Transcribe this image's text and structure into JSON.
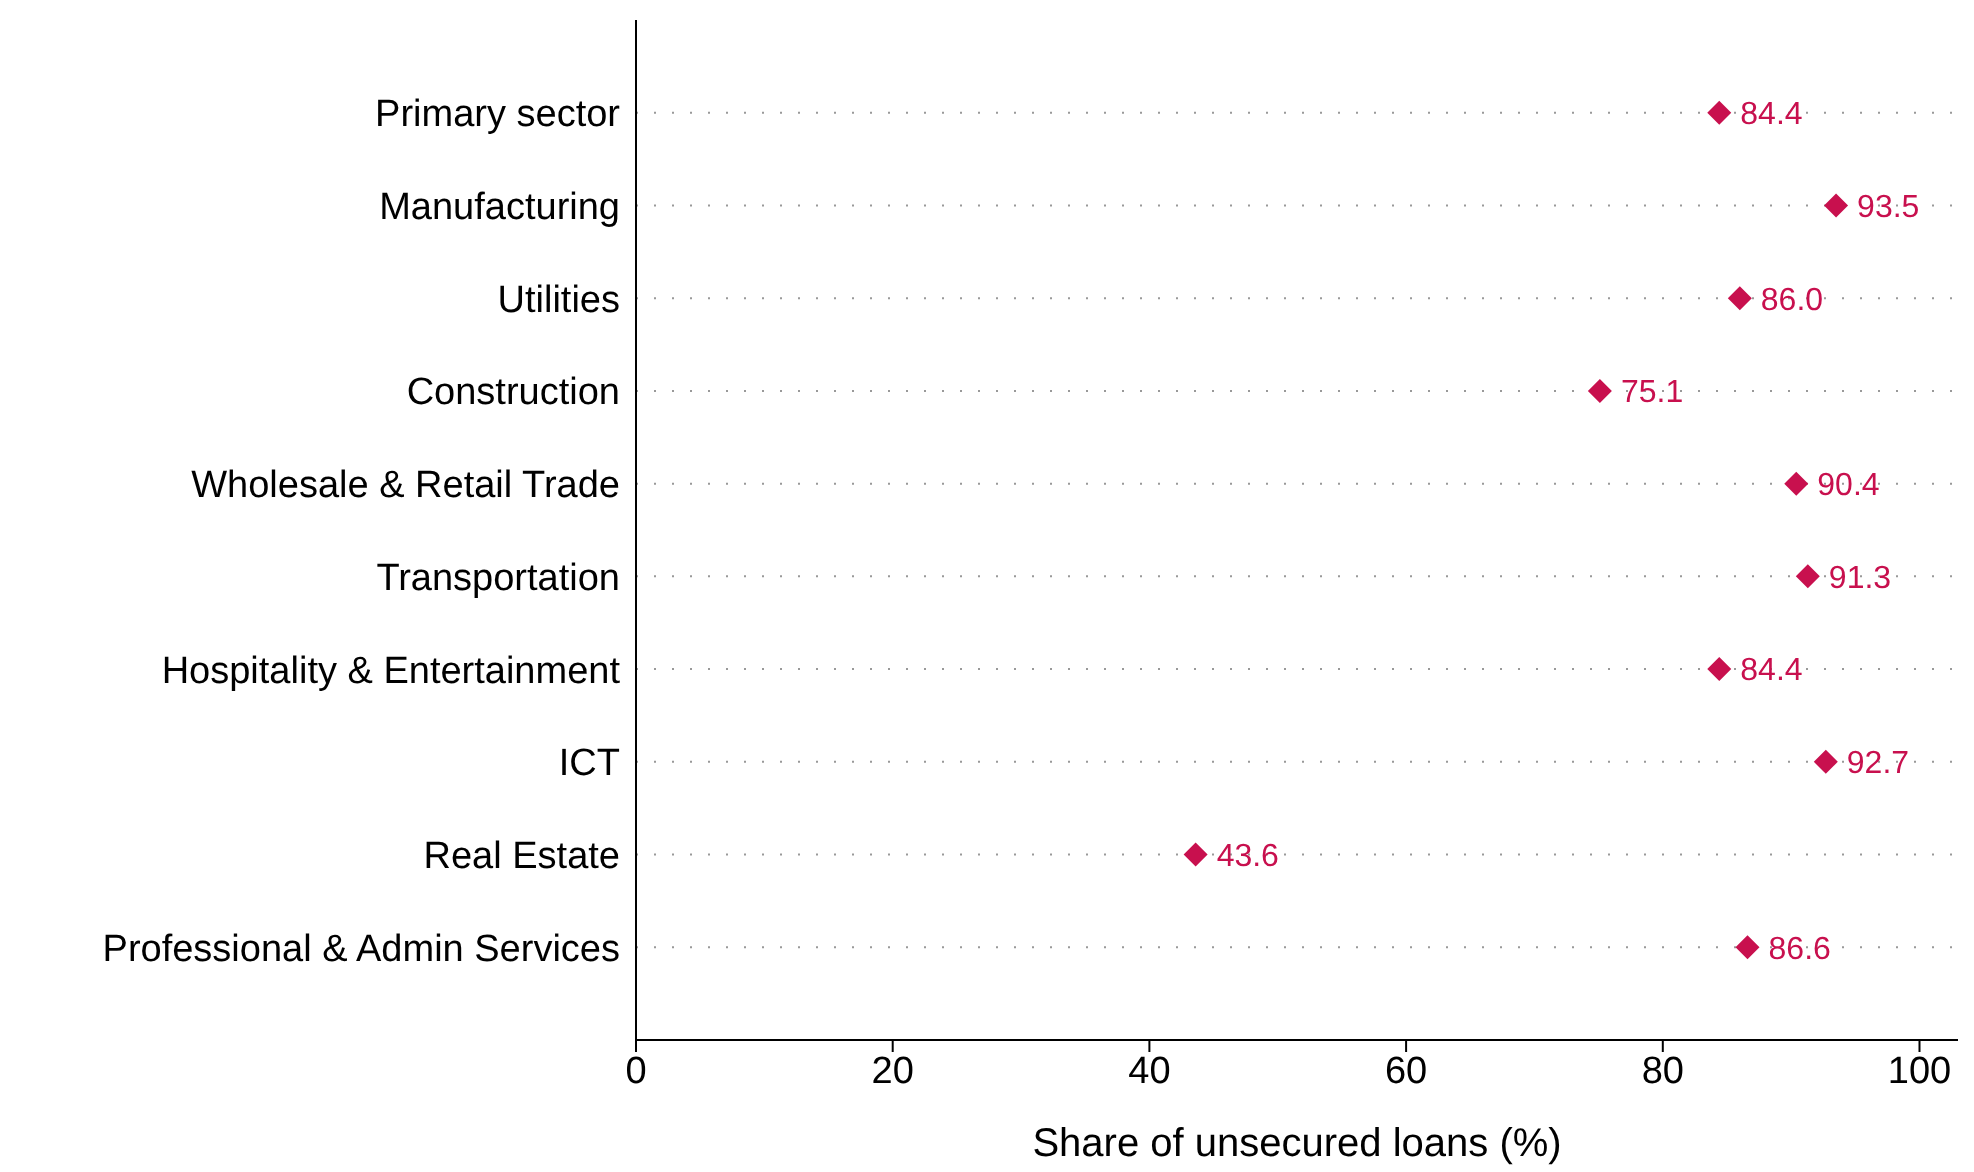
{
  "chart_data": {
    "type": "scatter",
    "orientation": "horizontal",
    "xlabel": "Share of unsecured loans (%)",
    "categories": [
      "Primary sector",
      "Manufacturing",
      "Utilities",
      "Construction",
      "Wholesale & Retail Trade",
      "Transportation",
      "Hospitality & Entertainment",
      "ICT",
      "Real Estate",
      "Professional & Admin Services"
    ],
    "values": [
      84.4,
      93.5,
      86.0,
      75.1,
      90.4,
      91.3,
      84.4,
      92.7,
      43.6,
      86.6
    ],
    "value_labels": [
      "84.4",
      "93.5",
      "86.0",
      "75.1",
      "90.4",
      "91.3",
      "84.4",
      "92.7",
      "43.6",
      "86.6"
    ],
    "color": "#c8104e",
    "marker": "diamond",
    "grid": "y",
    "xlim": [
      0,
      103
    ],
    "xticks": [
      0,
      20,
      40,
      60,
      80,
      100
    ]
  }
}
